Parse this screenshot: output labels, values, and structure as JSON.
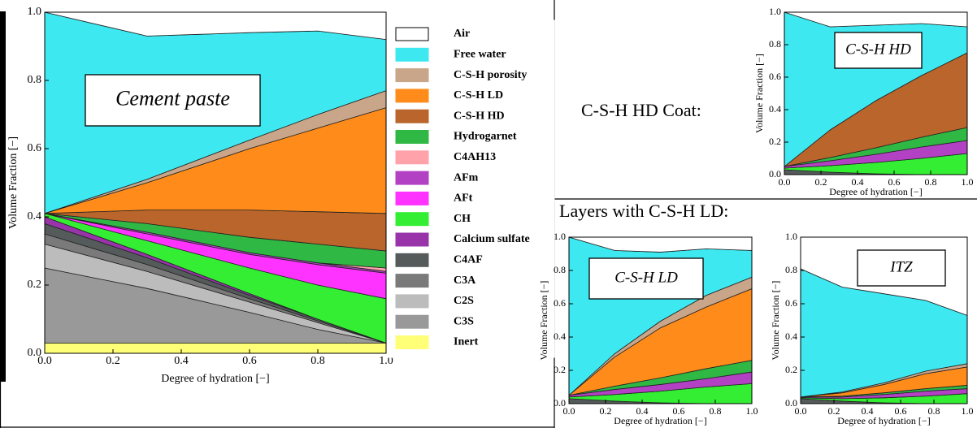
{
  "captions": {
    "hd_coat": "C-S-H HD Coat:",
    "ld_layers": "Layers with C-S-H LD:"
  },
  "chart_data": [
    {
      "type": "stacked_area",
      "annotation": "Cement paste",
      "xlabel": "Degree of hydration [−]",
      "ylabel": "Volume Fraction [−]",
      "xlim": [
        0,
        1
      ],
      "ylim": [
        0,
        1
      ],
      "xticks": [
        {
          "value": 0,
          "label": "0.0"
        },
        0.2,
        0.4,
        0.6,
        0.8,
        {
          "value": 1,
          "label": "1.0"
        }
      ],
      "yticks": [
        {
          "value": 0,
          "label": "0.0"
        },
        0.2,
        0.4,
        0.6,
        0.8,
        {
          "value": 1,
          "label": "1.0"
        }
      ],
      "legend": true,
      "x": [
        0,
        0.3,
        0.6,
        0.8,
        1
      ],
      "series": [
        {
          "name": "Air",
          "color": "#ffffff",
          "values": [
            0,
            0.07,
            0.06,
            0.055,
            0.08
          ]
        },
        {
          "name": "Free water",
          "color": "#3ee8f0",
          "values": [
            0.59,
            0.42,
            0.315,
            0.245,
            0.15
          ]
        },
        {
          "name": "C-S-H porosity",
          "color": "#c9a689",
          "values": [
            0,
            0.01,
            0.025,
            0.04,
            0.05
          ]
        },
        {
          "name": "C-S-H LD",
          "color": "#ff8c1a",
          "values": [
            0,
            0.08,
            0.18,
            0.245,
            0.31
          ]
        },
        {
          "name": "C-S-H HD",
          "color": "#b9652b",
          "values": [
            0,
            0.04,
            0.08,
            0.095,
            0.11
          ]
        },
        {
          "name": "Hydrogarnet",
          "color": "#2fb844",
          "values": [
            0,
            0.025,
            0.045,
            0.055,
            0.05
          ]
        },
        {
          "name": "C4AH13",
          "color": "#ffa2aa",
          "values": [
            0,
            0,
            0,
            0,
            0.01
          ]
        },
        {
          "name": "AFm",
          "color": "#b341c4",
          "values": [
            0,
            0.005,
            0.005,
            0.005,
            0.005
          ]
        },
        {
          "name": "AFt",
          "color": "#ff33ff",
          "values": [
            0,
            0.02,
            0.04,
            0.06,
            0.075
          ]
        },
        {
          "name": "CH",
          "color": "#33ee33",
          "values": [
            0.01,
            0.04,
            0.075,
            0.1,
            0.13
          ]
        },
        {
          "name": "Calcium sulfate",
          "color": "#9933aa",
          "values": [
            0.02,
            0.01,
            0.005,
            0,
            0
          ]
        },
        {
          "name": "C4AF",
          "color": "#555b5b",
          "values": [
            0.03,
            0.02,
            0.01,
            0.005,
            0
          ]
        },
        {
          "name": "C3A",
          "color": "#7a7a7a",
          "values": [
            0.03,
            0.02,
            0.01,
            0.005,
            0
          ]
        },
        {
          "name": "C2S",
          "color": "#bcbcbc",
          "values": [
            0.07,
            0.05,
            0.03,
            0.02,
            0
          ]
        },
        {
          "name": "C3S",
          "color": "#999999",
          "values": [
            0.22,
            0.16,
            0.09,
            0.04,
            0
          ]
        },
        {
          "name": "Inert",
          "color": "#ffff77",
          "values": [
            0.03,
            0.03,
            0.03,
            0.03,
            0.03
          ]
        }
      ]
    },
    {
      "type": "stacked_area",
      "annotation": "C-S-H HD",
      "xlabel": "Degree of hydration [−]",
      "ylabel": "Volume Fraction [−]",
      "xlim": [
        0,
        1
      ],
      "ylim": [
        0,
        1
      ],
      "xticks": [
        {
          "value": 0,
          "label": "0.0"
        },
        0.2,
        0.4,
        0.6,
        0.8,
        {
          "value": 1,
          "label": "1.0"
        }
      ],
      "yticks": [
        {
          "value": 0,
          "label": "0.0"
        },
        0.2,
        0.4,
        0.6,
        0.8,
        {
          "value": 1,
          "label": "1.0"
        }
      ],
      "legend": false,
      "x": [
        0,
        0.25,
        0.5,
        0.75,
        1
      ],
      "series": [
        {
          "name": "Air",
          "color": "#ffffff",
          "values": [
            0,
            0.09,
            0.08,
            0.07,
            0.09
          ]
        },
        {
          "name": "Free water",
          "color": "#3ee8f0",
          "values": [
            0.95,
            0.635,
            0.465,
            0.32,
            0.16
          ]
        },
        {
          "name": "C-S-H HD",
          "color": "#b9652b",
          "values": [
            0,
            0.17,
            0.29,
            0.38,
            0.46
          ]
        },
        {
          "name": "Hydrogarnet",
          "color": "#2fb844",
          "values": [
            0,
            0.02,
            0.04,
            0.06,
            0.08
          ]
        },
        {
          "name": "AFm",
          "color": "#b341c4",
          "values": [
            0.01,
            0.03,
            0.05,
            0.07,
            0.08
          ]
        },
        {
          "name": "CH",
          "color": "#33ee33",
          "values": [
            0.01,
            0.04,
            0.07,
            0.1,
            0.13
          ]
        },
        {
          "name": "C3S",
          "color": "#555b5b",
          "values": [
            0.03,
            0.015,
            0.005,
            0,
            0
          ]
        }
      ]
    },
    {
      "type": "stacked_area",
      "annotation": "C-S-H LD",
      "xlabel": "Degree of hydration [−]",
      "ylabel": "Volume Fraction [−]",
      "xlim": [
        0,
        1
      ],
      "ylim": [
        0,
        1
      ],
      "xticks": [
        {
          "value": 0,
          "label": "0.0"
        },
        0.2,
        0.4,
        0.6,
        0.8,
        {
          "value": 1,
          "label": "1.0"
        }
      ],
      "yticks": [
        {
          "value": 0,
          "label": "0.0"
        },
        0.2,
        0.4,
        0.6,
        0.8,
        {
          "value": 1,
          "label": "1.0"
        }
      ],
      "legend": false,
      "x": [
        0,
        0.25,
        0.5,
        0.75,
        1
      ],
      "series": [
        {
          "name": "Air",
          "color": "#ffffff",
          "values": [
            0,
            0.08,
            0.09,
            0.07,
            0.08
          ]
        },
        {
          "name": "Free water",
          "color": "#3ee8f0",
          "values": [
            0.95,
            0.62,
            0.415,
            0.28,
            0.16
          ]
        },
        {
          "name": "C-S-H porosity",
          "color": "#c9a689",
          "values": [
            0,
            0.02,
            0.04,
            0.07,
            0.07
          ]
        },
        {
          "name": "C-S-H LD",
          "color": "#ff8c1a",
          "values": [
            0,
            0.175,
            0.3,
            0.37,
            0.43
          ]
        },
        {
          "name": "Hydrogarnet",
          "color": "#2fb844",
          "values": [
            0,
            0.02,
            0.04,
            0.06,
            0.07
          ]
        },
        {
          "name": "AFm",
          "color": "#b341c4",
          "values": [
            0.01,
            0.03,
            0.04,
            0.05,
            0.07
          ]
        },
        {
          "name": "CH",
          "color": "#33ee33",
          "values": [
            0.01,
            0.04,
            0.07,
            0.1,
            0.12
          ]
        },
        {
          "name": "C3S",
          "color": "#555b5b",
          "values": [
            0.03,
            0.015,
            0.005,
            0,
            0
          ]
        }
      ]
    },
    {
      "type": "stacked_area",
      "annotation": "ITZ",
      "xlabel": "Degree of hydration [−]",
      "ylabel": "Volume Fraction [−]",
      "xlim": [
        0,
        1
      ],
      "ylim": [
        0,
        1
      ],
      "xticks": [
        {
          "value": 0,
          "label": "0.0"
        },
        0.2,
        0.4,
        0.6,
        0.8,
        {
          "value": 1,
          "label": "1.0"
        }
      ],
      "yticks": [
        {
          "value": 0,
          "label": "0.0"
        },
        0.2,
        0.4,
        0.6,
        0.8,
        {
          "value": 1,
          "label": "1.0"
        }
      ],
      "legend": false,
      "x": [
        0,
        0.25,
        0.5,
        0.75,
        1
      ],
      "series": [
        {
          "name": "Air",
          "color": "#ffffff",
          "values": [
            0.19,
            0.3,
            0.34,
            0.38,
            0.47
          ]
        },
        {
          "name": "Free water",
          "color": "#3ee8f0",
          "values": [
            0.77,
            0.63,
            0.535,
            0.425,
            0.29
          ]
        },
        {
          "name": "C-S-H porosity",
          "color": "#c9a689",
          "values": [
            0,
            0.005,
            0.01,
            0.015,
            0.02
          ]
        },
        {
          "name": "C-S-H LD",
          "color": "#ff8c1a",
          "values": [
            0,
            0.02,
            0.05,
            0.09,
            0.11
          ]
        },
        {
          "name": "Hydrogarnet",
          "color": "#2fb844",
          "values": [
            0,
            0.005,
            0.01,
            0.015,
            0.02
          ]
        },
        {
          "name": "AFm",
          "color": "#b341c4",
          "values": [
            0.005,
            0.01,
            0.02,
            0.03,
            0.03
          ]
        },
        {
          "name": "CH",
          "color": "#33ee33",
          "values": [
            0.005,
            0.015,
            0.03,
            0.045,
            0.06
          ]
        },
        {
          "name": "C3S",
          "color": "#555b5b",
          "values": [
            0.03,
            0.015,
            0.005,
            0,
            0
          ]
        }
      ]
    }
  ]
}
